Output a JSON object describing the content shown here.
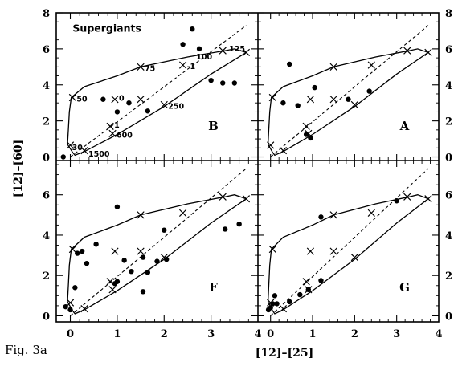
{
  "figure": {
    "caption": "Fig. 3a"
  },
  "chart_data": {
    "type": "scatter",
    "xlabel": "[12]–[25]",
    "ylabel": "[12]–[60]",
    "xlim": [
      -0.3,
      4.0
    ],
    "top_ylim": [
      -0.2,
      8.0
    ],
    "bottom_ylim": [
      -0.3,
      7.7
    ],
    "top_yticks": [
      0,
      2,
      4,
      6,
      8
    ],
    "bottom_yticks": [
      0,
      2,
      4,
      6
    ],
    "xticks": [
      0,
      1,
      2,
      3,
      4
    ],
    "model_curve_solid": [
      [
        -0.06,
        0.7
      ],
      [
        -0.04,
        1.6
      ],
      [
        -0.02,
        2.5
      ],
      [
        0.02,
        3.3
      ],
      [
        0.3,
        3.9
      ],
      [
        1.0,
        4.5
      ],
      [
        1.5,
        5.0
      ],
      [
        2.5,
        5.55
      ],
      [
        3.3,
        5.9
      ],
      [
        3.5,
        6.0
      ],
      [
        3.75,
        5.8
      ],
      [
        3.0,
        4.6
      ],
      [
        2.0,
        2.8
      ],
      [
        1.0,
        1.25
      ],
      [
        0.3,
        0.3
      ],
      [
        0.1,
        0.1
      ],
      [
        0.05,
        0.25
      ],
      [
        -0.06,
        0.7
      ]
    ],
    "model_line_dashed": [
      [
        0.0,
        0.0
      ],
      [
        3.75,
        7.3
      ]
    ],
    "cross_markers": [
      [
        0.0,
        0.65
      ],
      [
        0.05,
        3.3
      ],
      [
        0.3,
        0.35
      ],
      [
        0.9,
        1.3
      ],
      [
        0.85,
        1.7
      ],
      [
        0.95,
        3.2
      ],
      [
        1.5,
        5.0
      ],
      [
        1.5,
        3.2
      ],
      [
        2.0,
        2.9
      ],
      [
        2.4,
        5.1
      ],
      [
        3.25,
        5.9
      ],
      [
        3.75,
        5.8
      ]
    ],
    "annotations": [
      {
        "text": "30",
        "x": -0.05,
        "y": 0.55
      },
      {
        "text": "1500",
        "x": 0.3,
        "y": 0.2
      },
      {
        "text": "50",
        "x": 0.05,
        "y": 3.25
      },
      {
        "text": "1",
        "x": 0.85,
        "y": 1.8
      },
      {
        "text": "600",
        "x": 0.9,
        "y": 1.25
      },
      {
        "text": "0",
        "x": 0.95,
        "y": 3.3
      },
      {
        "text": "75",
        "x": 1.5,
        "y": 4.95
      },
      {
        "text": "-1",
        "x": 2.4,
        "y": 5.05
      },
      {
        "text": "100",
        "x": 2.6,
        "y": 5.6
      },
      {
        "text": "125",
        "x": 3.3,
        "y": 6.05
      },
      {
        "text": "250",
        "x": 2.0,
        "y": 2.85
      }
    ],
    "panels": [
      {
        "name": "B",
        "label": "Supergiants",
        "points": [
          [
            -0.15,
            0.0
          ],
          [
            0.7,
            3.2
          ],
          [
            1.0,
            2.5
          ],
          [
            1.25,
            3.0
          ],
          [
            1.65,
            2.55
          ],
          [
            2.4,
            6.25
          ],
          [
            2.6,
            7.1
          ],
          [
            2.75,
            6.0
          ],
          [
            3.0,
            4.25
          ],
          [
            3.25,
            4.1
          ],
          [
            3.5,
            4.1
          ]
        ]
      },
      {
        "name": "A",
        "label": "",
        "points": [
          [
            0.45,
            5.15
          ],
          [
            0.3,
            3.0
          ],
          [
            0.65,
            2.85
          ],
          [
            0.85,
            1.25
          ],
          [
            0.95,
            1.05
          ],
          [
            1.05,
            3.85
          ],
          [
            1.85,
            3.2
          ],
          [
            2.35,
            3.65
          ]
        ]
      },
      {
        "name": "F",
        "label": "",
        "points": [
          [
            -0.1,
            0.45
          ],
          [
            0.0,
            0.3
          ],
          [
            0.1,
            1.4
          ],
          [
            0.15,
            3.1
          ],
          [
            0.25,
            3.2
          ],
          [
            0.35,
            2.6
          ],
          [
            0.55,
            3.55
          ],
          [
            1.0,
            5.4
          ],
          [
            1.0,
            1.7
          ],
          [
            1.15,
            2.75
          ],
          [
            1.3,
            2.2
          ],
          [
            1.55,
            1.2
          ],
          [
            1.55,
            2.9
          ],
          [
            1.65,
            2.15
          ],
          [
            1.85,
            2.7
          ],
          [
            2.0,
            4.25
          ],
          [
            2.05,
            2.8
          ],
          [
            3.3,
            4.3
          ],
          [
            3.6,
            4.55
          ],
          [
            0.95,
            1.6
          ]
        ]
      },
      {
        "name": "G",
        "label": "",
        "points": [
          [
            -0.05,
            0.3
          ],
          [
            0.0,
            0.4
          ],
          [
            0.05,
            0.6
          ],
          [
            0.1,
            1.0
          ],
          [
            0.15,
            0.6
          ],
          [
            0.45,
            0.7
          ],
          [
            0.7,
            1.05
          ],
          [
            0.9,
            1.3
          ],
          [
            1.2,
            1.75
          ],
          [
            1.2,
            4.9
          ],
          [
            3.0,
            5.7
          ]
        ]
      }
    ]
  }
}
